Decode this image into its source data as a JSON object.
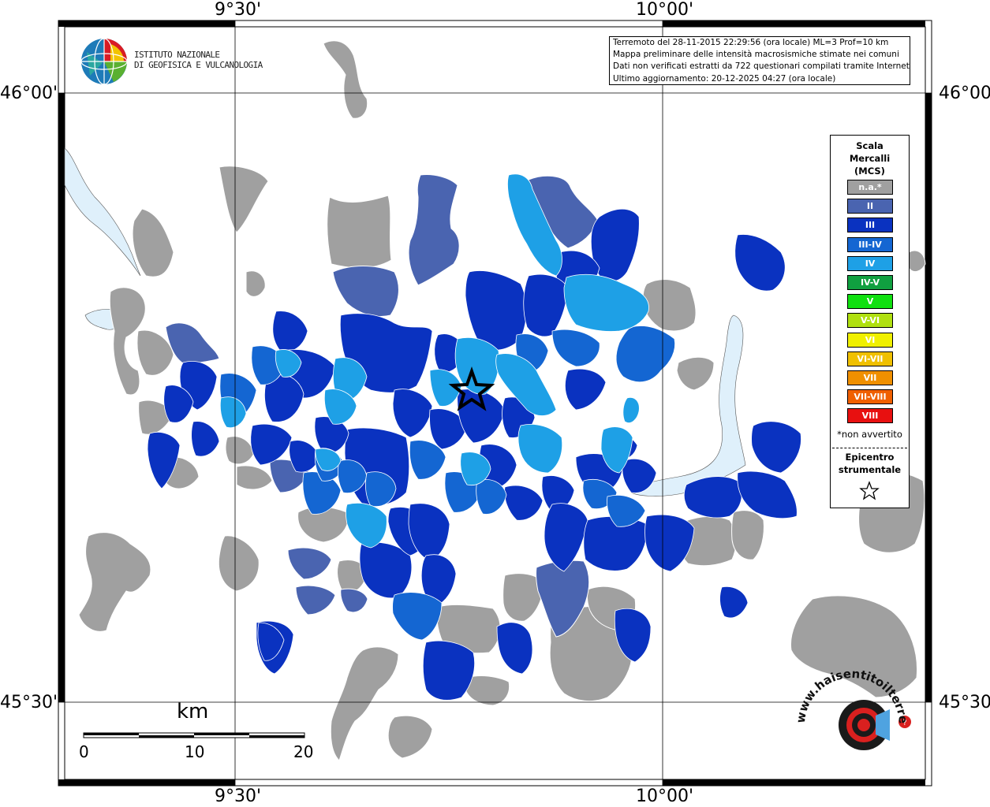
{
  "institute": {
    "line1": "ISTITUTO NAZIONALE",
    "line2": "DI GEOFISICA E VULCANOLOGIA"
  },
  "info": {
    "line1": "Terremoto del 28-11-2015 22:29:56 (ora locale) ML=3 Prof=10 km",
    "line2": "Mappa preliminare delle intensità macrosismiche stimate nei comuni",
    "line3": "Dati non verificati estratti da 722 questionari compilati tramite Internet.",
    "line4": "Ultimo aggiornamento: 20-12-2025 04:27 (ora locale)"
  },
  "coords": {
    "top_left": "9°30'",
    "top_right": "10°00'",
    "bottom_left": "9°30'",
    "bottom_right": "10°00'",
    "left_top": "46°00'",
    "left_bottom": "45°30'",
    "right_top": "46°00'",
    "right_bottom": "45°30'"
  },
  "legend": {
    "title1": "Scala",
    "title2": "Mercalli",
    "title3": "(MCS)",
    "items": [
      {
        "label": "n.a.*",
        "color": "#a0a0a0"
      },
      {
        "label": "II",
        "color": "#4a64b0"
      },
      {
        "label": "III",
        "color": "#0a32c0"
      },
      {
        "label": "III-IV",
        "color": "#1466d2"
      },
      {
        "label": "IV",
        "color": "#1ea0e6"
      },
      {
        "label": "IV-V",
        "color": "#10a040"
      },
      {
        "label": "V",
        "color": "#10e010"
      },
      {
        "label": "V-VI",
        "color": "#b0e010"
      },
      {
        "label": "VI",
        "color": "#f0f000"
      },
      {
        "label": "VI-VII",
        "color": "#f0c000"
      },
      {
        "label": "VII",
        "color": "#f09000"
      },
      {
        "label": "VII-VIII",
        "color": "#f06000"
      },
      {
        "label": "VIII",
        "color": "#e81010"
      }
    ],
    "note": "*non avvertito",
    "epicenter1": "Epicentro",
    "epicenter2": "strumentale"
  },
  "scale_bar": {
    "unit": "km",
    "ticks": [
      "0",
      "10",
      "20"
    ]
  },
  "watermark": {
    "site": "www.haisentitoilterremoto.it"
  },
  "colors": {
    "na": "#a0a0a0",
    "II": "#4a64b0",
    "III": "#0a32c0",
    "III-IV": "#1466d2",
    "IV": "#1ea0e6",
    "water": "#dff0fb"
  }
}
